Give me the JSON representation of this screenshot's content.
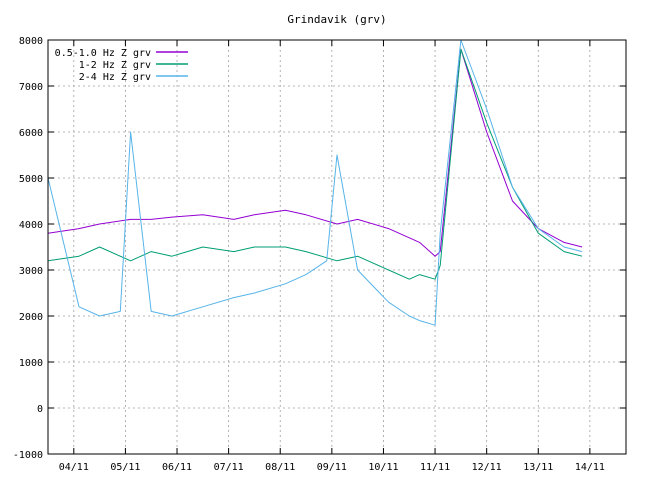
{
  "chart_data": {
    "type": "line",
    "title": "Grindavik (grv)",
    "xlabel": "",
    "ylabel": "",
    "ylim": [
      -1000,
      8000
    ],
    "yticks": [
      -1000,
      0,
      1000,
      2000,
      3000,
      4000,
      5000,
      6000,
      7000,
      8000
    ],
    "xlim": [
      0,
      11.2
    ],
    "x_tick_positions": [
      0.5,
      1.5,
      2.5,
      3.5,
      4.5,
      5.5,
      6.5,
      7.5,
      8.5,
      9.5,
      10.5
    ],
    "x_tick_labels": [
      "04/11",
      "05/11",
      "06/11",
      "07/11",
      "08/11",
      "09/11",
      "10/11",
      "11/11",
      "12/11",
      "13/11",
      "14/11"
    ],
    "grid": true,
    "legend_position": "top-left",
    "series": [
      {
        "name": "0.5-1.0 Hz Z grv",
        "color": "#9400d3",
        "x": [
          0,
          0.6,
          1.0,
          1.6,
          2.0,
          2.4,
          3.0,
          3.6,
          4.0,
          4.6,
          5.0,
          5.6,
          6.0,
          6.6,
          7.0,
          7.2,
          7.5,
          7.6,
          8.0,
          8.5,
          9.0,
          9.5,
          10.0,
          10.35
        ],
        "y": [
          3800,
          3900,
          4000,
          4100,
          4100,
          4150,
          4200,
          4100,
          4200,
          4300,
          4200,
          4000,
          4100,
          3900,
          3700,
          3600,
          3300,
          3400,
          7800,
          6000,
          4500,
          3900,
          3600,
          3500
        ]
      },
      {
        "name": "1-2 Hz Z grv",
        "color": "#009e73",
        "x": [
          0,
          0.6,
          1.0,
          1.6,
          2.0,
          2.4,
          3.0,
          3.6,
          4.0,
          4.6,
          5.0,
          5.6,
          6.0,
          6.6,
          7.0,
          7.2,
          7.5,
          7.6,
          8.0,
          8.5,
          9.0,
          9.5,
          10.0,
          10.35
        ],
        "y": [
          3200,
          3300,
          3500,
          3200,
          3400,
          3300,
          3500,
          3400,
          3500,
          3500,
          3400,
          3200,
          3300,
          3000,
          2800,
          2900,
          2800,
          3100,
          7800,
          6200,
          4800,
          3800,
          3400,
          3300
        ]
      },
      {
        "name": "2-4 Hz Z grv",
        "color": "#56b4e9",
        "x": [
          0,
          0.6,
          1.0,
          1.4,
          1.6,
          2.0,
          2.4,
          3.0,
          3.6,
          4.0,
          4.6,
          5.0,
          5.4,
          5.6,
          6.0,
          6.6,
          7.0,
          7.2,
          7.5,
          7.6,
          8.0,
          8.5,
          9.0,
          9.5,
          10.0,
          10.35
        ],
        "y": [
          5000,
          2200,
          2000,
          2100,
          6000,
          2100,
          2000,
          2200,
          2400,
          2500,
          2700,
          2900,
          3200,
          5500,
          3000,
          2300,
          2000,
          1900,
          1800,
          3800,
          8000,
          6500,
          4800,
          3900,
          3500,
          3400
        ]
      }
    ]
  }
}
